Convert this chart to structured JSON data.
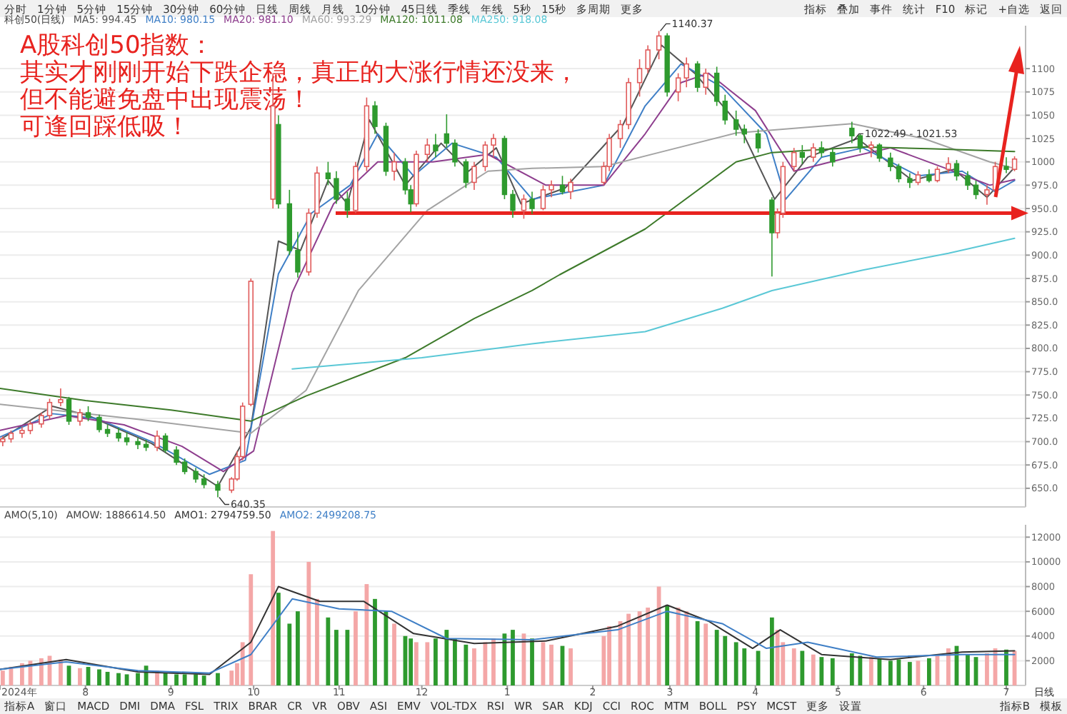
{
  "chart_data": [
    {
      "type": "other",
      "annotations": [
        "分时",
        "1分钟",
        "5分钟",
        "15分钟",
        "30分钟",
        "60分钟",
        "日线",
        "周线",
        "月线",
        "10分钟",
        "45日线",
        "季线",
        "年线",
        "5秒",
        "15秒",
        "多周期",
        "更多"
      ]
    },
    {
      "type": "other",
      "annotations": [
        "指标",
        "叠加",
        "事件",
        "统计",
        "F10",
        "标记",
        "+自选",
        "返回"
      ]
    },
    {
      "type": "candlestick",
      "subtitle": "科创50(日线)",
      "legend": "top left",
      "grid": "y",
      "tick_labels": "y",
      "xlim": [
        "2024-07-01",
        "2025-07-08"
      ],
      "ylim": [
        630,
        1146
      ],
      "yticks": [
        {
          "value": 650,
          "label": "650.0"
        },
        {
          "value": 675,
          "label": "675.0"
        },
        {
          "value": 700,
          "label": "700.0"
        },
        {
          "value": 725,
          "label": "725.0"
        },
        {
          "value": 750,
          "label": "750.0"
        },
        {
          "value": 775,
          "label": "775.0"
        },
        {
          "value": 800,
          "label": "800.0"
        },
        {
          "value": 825,
          "label": "825.0"
        },
        {
          "value": 850,
          "label": "850.0"
        },
        {
          "value": 875,
          "label": "875.0"
        },
        {
          "value": 900,
          "label": "900.0"
        },
        {
          "value": 925,
          "label": "925.0"
        },
        {
          "value": 950,
          "label": "950.0"
        },
        {
          "value": 975,
          "label": "975.0"
        },
        1000,
        1025,
        1050,
        1075,
        1100
      ],
      "x": [
        "2024-07-02",
        "2024-07-05",
        "2024-07-09",
        "2024-07-12",
        "2024-07-16",
        "2024-07-19",
        "2024-07-23",
        "2024-07-26",
        "2024-07-30",
        "2024-08-02",
        "2024-08-06",
        "2024-08-09",
        "2024-08-13",
        "2024-08-16",
        "2024-08-20",
        "2024-08-23",
        "2024-08-27",
        "2024-08-30",
        "2024-09-03",
        "2024-09-06",
        "2024-09-10",
        "2024-09-13",
        "2024-09-18",
        "2024-09-23",
        "2024-09-25",
        "2024-09-27",
        "2024-09-30",
        "2024-10-08",
        "2024-10-10",
        "2024-10-14",
        "2024-10-17",
        "2024-10-21",
        "2024-10-24",
        "2024-10-28",
        "2024-10-31",
        "2024-11-04",
        "2024-11-07",
        "2024-11-11",
        "2024-11-14",
        "2024-11-18",
        "2024-11-21",
        "2024-11-25",
        "2024-11-27",
        "2024-11-29",
        "2024-12-03",
        "2024-12-06",
        "2024-12-10",
        "2024-12-13",
        "2024-12-17",
        "2024-12-20",
        "2024-12-24",
        "2024-12-27",
        "2024-12-31",
        "2025-01-03",
        "2025-01-07",
        "2025-01-10",
        "2025-01-14",
        "2025-01-17",
        "2025-01-21",
        "2025-01-24",
        "2025-02-05",
        "2025-02-07",
        "2025-02-11",
        "2025-02-14",
        "2025-02-18",
        "2025-02-21",
        "2025-02-25",
        "2025-02-28",
        "2025-03-04",
        "2025-03-07",
        "2025-03-11",
        "2025-03-14",
        "2025-03-18",
        "2025-03-21",
        "2025-03-25",
        "2025-03-28",
        "2025-04-02",
        "2025-04-07",
        "2025-04-09",
        "2025-04-11",
        "2025-04-15",
        "2025-04-18",
        "2025-04-22",
        "2025-04-25",
        "2025-04-29",
        "2025-05-06",
        "2025-05-09",
        "2025-05-13",
        "2025-05-16",
        "2025-05-20",
        "2025-05-23",
        "2025-05-27",
        "2025-05-30",
        "2025-06-03",
        "2025-06-06",
        "2025-06-10",
        "2025-06-13",
        "2025-06-17",
        "2025-06-20",
        "2025-06-24",
        "2025-06-27",
        "2025-07-01",
        "2025-07-04"
      ],
      "ohlc": [
        [
          700,
          706,
          695,
          703
        ],
        [
          703,
          712,
          699,
          709
        ],
        [
          709,
          716,
          704,
          712
        ],
        [
          712,
          722,
          708,
          719
        ],
        [
          719,
          731,
          715,
          728
        ],
        [
          728,
          746,
          724,
          742
        ],
        [
          742,
          757,
          738,
          745
        ],
        [
          745,
          748,
          718,
          722
        ],
        [
          722,
          735,
          717,
          731
        ],
        [
          731,
          738,
          722,
          726
        ],
        [
          726,
          729,
          710,
          713
        ],
        [
          713,
          718,
          705,
          709
        ],
        [
          709,
          715,
          700,
          704
        ],
        [
          704,
          710,
          696,
          700
        ],
        [
          700,
          704,
          692,
          697
        ],
        [
          697,
          702,
          690,
          694
        ],
        [
          694,
          712,
          690,
          706
        ],
        [
          706,
          709,
          688,
          691
        ],
        [
          691,
          695,
          675,
          678
        ],
        [
          678,
          682,
          665,
          668
        ],
        [
          668,
          672,
          656,
          660
        ],
        [
          660,
          665,
          650,
          654
        ],
        [
          654,
          658,
          640.35,
          648
        ],
        [
          648,
          662,
          645,
          660
        ],
        [
          660,
          690,
          658,
          684
        ],
        [
          684,
          742,
          680,
          738
        ],
        [
          740,
          875,
          738,
          872
        ],
        [
          960,
          1095,
          950,
          1060
        ],
        [
          1040,
          1050,
          950,
          955
        ],
        [
          955,
          970,
          900,
          905
        ],
        [
          905,
          925,
          876,
          882
        ],
        [
          882,
          950,
          878,
          945
        ],
        [
          945,
          995,
          940,
          988
        ],
        [
          988,
          1000,
          975,
          982
        ],
        [
          982,
          990,
          955,
          960
        ],
        [
          960,
          968,
          940,
          948
        ],
        [
          948,
          1000,
          945,
          995
        ],
        [
          995,
          1069,
          990,
          1060
        ],
        [
          1060,
          1065,
          1030,
          1038
        ],
        [
          1038,
          1042,
          985,
          990
        ],
        [
          990,
          1010,
          980,
          1000
        ],
        [
          1000,
          1004,
          965,
          970
        ],
        [
          970,
          975,
          946,
          955
        ],
        [
          955,
          1012,
          952,
          1008
        ],
        [
          1008,
          1025,
          1000,
          1018
        ],
        [
          1018,
          1030,
          1005,
          1012
        ],
        [
          1030,
          1051,
          1015,
          1020
        ],
        [
          1020,
          1024,
          995,
          1000
        ],
        [
          1000,
          1003,
          972,
          978
        ],
        [
          978,
          1000,
          970,
          995
        ],
        [
          995,
          1022,
          990,
          1018
        ],
        [
          1018,
          1030,
          1005,
          1025
        ],
        [
          1025,
          1028,
          960,
          965
        ],
        [
          965,
          970,
          940,
          948
        ],
        [
          948,
          965,
          939,
          960
        ],
        [
          960,
          968,
          944,
          950
        ],
        [
          950,
          975,
          948,
          970
        ],
        [
          970,
          980,
          962,
          975
        ],
        [
          975,
          985,
          965,
          968
        ],
        [
          968,
          982,
          960,
          978
        ],
        [
          978,
          1000,
          975,
          995
        ],
        [
          995,
          1030,
          990,
          1025
        ],
        [
          1025,
          1045,
          1015,
          1040
        ],
        [
          1040,
          1090,
          1035,
          1085
        ],
        [
          1085,
          1110,
          1070,
          1100
        ],
        [
          1100,
          1125,
          1095,
          1120
        ],
        [
          1120,
          1140.37,
          1110,
          1135
        ],
        [
          1135,
          1138,
          1070,
          1075
        ],
        [
          1075,
          1095,
          1065,
          1090
        ],
        [
          1090,
          1112,
          1080,
          1105
        ],
        [
          1105,
          1108,
          1075,
          1080
        ],
        [
          1080,
          1100,
          1072,
          1095
        ],
        [
          1095,
          1102,
          1060,
          1065
        ],
        [
          1065,
          1072,
          1040,
          1045
        ],
        [
          1045,
          1055,
          1028,
          1035
        ],
        [
          1035,
          1040,
          1020,
          1030
        ],
        [
          1030,
          1035,
          1010,
          1015
        ],
        [
          959,
          962,
          877,
          924
        ],
        [
          924,
          950,
          918,
          945
        ],
        [
          945,
          1000,
          940,
          995
        ],
        [
          995,
          1015,
          990,
          1010
        ],
        [
          1010,
          1018,
          998,
          1005
        ],
        [
          1005,
          1020,
          1000,
          1015
        ],
        [
          1015,
          1022,
          1005,
          1010
        ],
        [
          1010,
          1015,
          995,
          1000
        ],
        [
          1036,
          1043,
          1020,
          1028
        ],
        [
          1028,
          1030,
          1010,
          1015
        ],
        [
          1015,
          1022,
          1005,
          1018
        ],
        [
          1018,
          1020,
          1000,
          1004
        ],
        [
          1004,
          1010,
          990,
          995
        ],
        [
          995,
          998,
          978,
          982
        ],
        [
          982,
          988,
          972,
          978
        ],
        [
          978,
          990,
          975,
          986
        ],
        [
          986,
          992,
          978,
          980
        ],
        [
          980,
          995,
          978,
          992
        ],
        [
          992,
          1005,
          988,
          998
        ],
        [
          998,
          1002,
          980,
          985
        ],
        [
          985,
          990,
          970,
          975
        ],
        [
          975,
          980,
          960,
          965
        ],
        [
          965,
          975,
          954,
          970
        ],
        [
          970,
          1000,
          968,
          995
        ],
        [
          995,
          1005,
          988,
          992
        ],
        [
          992,
          1006,
          990,
          1003
        ]
      ],
      "series": [
        {
          "type": "line",
          "name": "MA5: 994.45",
          "color": "#555555",
          "x": [
            "2024-07-01",
            "2024-07-20",
            "2024-08-02",
            "2024-08-25",
            "2024-09-18",
            "2024-09-30",
            "2024-10-10",
            "2024-10-18",
            "2024-10-28",
            "2024-11-04",
            "2024-11-12",
            "2024-11-25",
            "2024-12-08",
            "2024-12-18",
            "2024-12-28",
            "2025-01-06",
            "2025-01-22",
            "2025-02-12",
            "2025-02-26",
            "2025-03-10",
            "2025-03-26",
            "2025-04-08",
            "2025-04-20",
            "2025-05-08",
            "2025-05-28",
            "2025-06-12",
            "2025-06-24",
            "2025-07-04"
          ],
          "values": [
            702,
            738,
            728,
            698,
            652,
            715,
            915,
            905,
            980,
            955,
            1045,
            975,
            1020,
            990,
            1015,
            955,
            972,
            1040,
            1125,
            1095,
            1040,
            960,
            1005,
            1025,
            980,
            992,
            962,
            994
          ]
        },
        {
          "type": "line",
          "name": "MA10: 980.15",
          "color": "#3f7fc6",
          "x": [
            "2024-07-01",
            "2024-07-20",
            "2024-08-05",
            "2024-08-25",
            "2024-09-15",
            "2024-09-28",
            "2024-10-10",
            "2024-10-22",
            "2024-11-05",
            "2024-11-15",
            "2024-11-28",
            "2024-12-12",
            "2024-12-28",
            "2025-01-10",
            "2025-02-05",
            "2025-02-20",
            "2025-03-05",
            "2025-03-20",
            "2025-04-05",
            "2025-04-12",
            "2025-04-25",
            "2025-05-10",
            "2025-05-30",
            "2025-06-15",
            "2025-06-27",
            "2025-07-04"
          ],
          "values": [
            705,
            730,
            725,
            700,
            665,
            680,
            880,
            945,
            975,
            1030,
            985,
            1020,
            1005,
            960,
            975,
            1060,
            1105,
            1080,
            1030,
            960,
            1005,
            1015,
            985,
            990,
            968,
            980
          ]
        },
        {
          "type": "line",
          "name": "MA20: 981.10",
          "color": "#8e3e8e",
          "x": [
            "2024-07-01",
            "2024-07-25",
            "2024-08-15",
            "2024-09-05",
            "2024-09-20",
            "2024-10-01",
            "2024-10-15",
            "2024-10-30",
            "2024-11-15",
            "2024-12-05",
            "2024-12-25",
            "2025-01-15",
            "2025-02-05",
            "2025-02-20",
            "2025-03-05",
            "2025-03-15",
            "2025-04-01",
            "2025-04-15",
            "2025-05-05",
            "2025-05-20",
            "2025-06-10",
            "2025-06-25",
            "2025-07-04"
          ],
          "values": [
            712,
            728,
            718,
            695,
            668,
            690,
            860,
            955,
            1000,
            1000,
            1008,
            975,
            975,
            1030,
            1085,
            1095,
            1055,
            990,
            1005,
            1015,
            992,
            975,
            981
          ]
        },
        {
          "type": "line",
          "name": "MA60: 993.29",
          "color": "#a3a3a3",
          "x": [
            "2024-07-01",
            "2024-08-20",
            "2024-09-30",
            "2024-10-20",
            "2024-11-08",
            "2024-12-03",
            "2024-12-25",
            "2025-01-10",
            "2025-02-05",
            "2025-02-25",
            "2025-03-25",
            "2025-05-06",
            "2025-06-01",
            "2025-06-25",
            "2025-07-04"
          ],
          "values": [
            740,
            724,
            709,
            755,
            862,
            948,
            990,
            993,
            995,
            1010,
            1031,
            1041,
            1025,
            1000,
            993
          ]
        },
        {
          "type": "line",
          "name": "MA120: 1011.08",
          "color": "#3d7a2a",
          "x": [
            "2024-07-01",
            "2024-08-01",
            "2024-09-01",
            "2024-09-30",
            "2024-10-20",
            "2024-11-25",
            "2024-12-20",
            "2025-01-10",
            "2025-01-20",
            "2025-02-20",
            "2025-03-25",
            "2025-04-07",
            "2025-05-10",
            "2025-06-05",
            "2025-07-04"
          ],
          "values": [
            757,
            744,
            734,
            722,
            749,
            790,
            832,
            862,
            879,
            928,
            1000,
            1010,
            1016,
            1014,
            1011
          ]
        },
        {
          "type": "line",
          "name": "MA250: 918.08",
          "color": "#5bc8d6",
          "x": [
            "2024-10-15",
            "2024-12-01",
            "2025-01-10",
            "2025-02-20",
            "2025-03-20",
            "2025-04-07",
            "2025-05-10",
            "2025-06-10",
            "2025-07-04"
          ],
          "values": [
            778,
            790,
            805,
            818,
            843,
            862,
            884,
            902,
            918
          ]
        }
      ],
      "ref_lines": [
        {
          "axis": "y",
          "value": 945,
          "color": "#e8231f"
        }
      ],
      "annotations": [
        "A股科创50指数：",
        "其实才刚刚开始下跌企稳，真正的大涨行情还没来，",
        "但不能避免盘中出现震荡！",
        "可逢回踩低吸！",
        {
          "text": "1140.37",
          "x": "2025-02-25",
          "y": 1140.37
        },
        {
          "text": "640.35",
          "x": "2024-09-18",
          "y": 640.35
        },
        {
          "text": "1022.49 - 1021.53",
          "x": "2025-05-06",
          "y": 1022.49
        }
      ]
    },
    {
      "type": "bar",
      "subtitle": "AMO(5,10)",
      "legend": "top left",
      "grid": "y",
      "annotations": [
        "AMOW: 1886614.50",
        "日线"
      ],
      "xlim": [
        "2024-07-01",
        "2025-07-08"
      ],
      "xticks": [
        {
          "value": "2024-07-01",
          "label": "2024年"
        },
        {
          "value": "2024-08-01",
          "label": "8"
        },
        {
          "value": "2024-09-01",
          "label": "9"
        },
        {
          "value": "2024-10-01",
          "label": "10"
        },
        {
          "value": "2024-11-01",
          "label": "11"
        },
        {
          "value": "2024-12-01",
          "label": "12"
        },
        {
          "value": "2025-01-01",
          "label": "1"
        },
        {
          "value": "2025-02-01",
          "label": "2"
        },
        {
          "value": "2025-03-01",
          "label": "3"
        },
        {
          "value": "2025-04-01",
          "label": "4"
        },
        {
          "value": "2025-05-01",
          "label": "5"
        },
        {
          "value": "2025-06-01",
          "label": "6"
        },
        {
          "value": "2025-07-01",
          "label": "7"
        }
      ],
      "ylim": [
        0,
        13000
      ],
      "yticks": [
        2000,
        4000,
        6000,
        8000,
        10000,
        12000
      ],
      "x": [
        "2024-07-02",
        "2024-07-05",
        "2024-07-09",
        "2024-07-12",
        "2024-07-16",
        "2024-07-19",
        "2024-07-23",
        "2024-07-26",
        "2024-07-30",
        "2024-08-02",
        "2024-08-06",
        "2024-08-09",
        "2024-08-13",
        "2024-08-16",
        "2024-08-20",
        "2024-08-23",
        "2024-08-27",
        "2024-08-30",
        "2024-09-03",
        "2024-09-06",
        "2024-09-10",
        "2024-09-13",
        "2024-09-18",
        "2024-09-23",
        "2024-09-25",
        "2024-09-27",
        "2024-09-30",
        "2024-10-08",
        "2024-10-10",
        "2024-10-14",
        "2024-10-17",
        "2024-10-21",
        "2024-10-24",
        "2024-10-28",
        "2024-10-31",
        "2024-11-04",
        "2024-11-07",
        "2024-11-11",
        "2024-11-14",
        "2024-11-18",
        "2024-11-21",
        "2024-11-25",
        "2024-11-27",
        "2024-11-29",
        "2024-12-03",
        "2024-12-06",
        "2024-12-10",
        "2024-12-13",
        "2024-12-17",
        "2024-12-20",
        "2024-12-24",
        "2024-12-27",
        "2024-12-31",
        "2025-01-03",
        "2025-01-07",
        "2025-01-10",
        "2025-01-14",
        "2025-01-17",
        "2025-01-21",
        "2025-01-24",
        "2025-02-05",
        "2025-02-07",
        "2025-02-11",
        "2025-02-14",
        "2025-02-18",
        "2025-02-21",
        "2025-02-25",
        "2025-02-28",
        "2025-03-04",
        "2025-03-07",
        "2025-03-11",
        "2025-03-14",
        "2025-03-18",
        "2025-03-21",
        "2025-03-25",
        "2025-03-28",
        "2025-04-02",
        "2025-04-07",
        "2025-04-09",
        "2025-04-11",
        "2025-04-15",
        "2025-04-18",
        "2025-04-22",
        "2025-04-25",
        "2025-04-29",
        "2025-05-06",
        "2025-05-09",
        "2025-05-13",
        "2025-05-16",
        "2025-05-20",
        "2025-05-23",
        "2025-05-27",
        "2025-05-30",
        "2025-06-03",
        "2025-06-06",
        "2025-06-10",
        "2025-06-13",
        "2025-06-17",
        "2025-06-20",
        "2025-06-24",
        "2025-06-27",
        "2025-07-01",
        "2025-07-04"
      ],
      "series": [
        {
          "type": "bar",
          "values": [
            1200,
            1500,
            1800,
            2000,
            2200,
            2400,
            2100,
            1600,
            1400,
            1500,
            1300,
            1100,
            1000,
            900,
            1000,
            1600,
            1200,
            1000,
            900,
            900,
            900,
            800,
            1000,
            1200,
            1800,
            3500,
            9000,
            12500,
            7500,
            5000,
            6000,
            10000,
            7000,
            5500,
            4500,
            4500,
            6000,
            8200,
            7000,
            6000,
            5000,
            4000,
            3800,
            3500,
            3500,
            3800,
            4500,
            3800,
            3300,
            3000,
            3500,
            3800,
            4200,
            4500,
            4200,
            3800,
            3500,
            3300,
            3200,
            3000,
            4000,
            4800,
            5200,
            5800,
            6000,
            6300,
            8000,
            6500,
            6300,
            6000,
            5200,
            5000,
            4500,
            4000,
            3500,
            3000,
            2800,
            5500,
            4500,
            3500,
            3000,
            2800,
            2500,
            2300,
            2200,
            2600,
            2400,
            2300,
            2200,
            2000,
            2100,
            1900,
            2000,
            2200,
            2400,
            3000,
            3200,
            2500,
            2300,
            2600,
            3000,
            2900,
            2800
          ],
          "colors": [
            "#f4a7a7",
            "#f4a7a7",
            "#f4a7a7",
            "#f4a7a7",
            "#f4a7a7",
            "#f4a7a7",
            "#f4a7a7",
            "#2e9a2e",
            "#f4a7a7",
            "#2e9a2e",
            "#2e9a2e",
            "#2e9a2e",
            "#2e9a2e",
            "#2e9a2e",
            "#2e9a2e",
            "#2e9a2e",
            "#f4a7a7",
            "#2e9a2e",
            "#2e9a2e",
            "#2e9a2e",
            "#2e9a2e",
            "#2e9a2e",
            "#2e9a2e",
            "#f4a7a7",
            "#f4a7a7",
            "#f4a7a7",
            "#f4a7a7",
            "#f4a7a7",
            "#2e9a2e",
            "#2e9a2e",
            "#2e9a2e",
            "#f4a7a7",
            "#f4a7a7",
            "#2e9a2e",
            "#2e9a2e",
            "#2e9a2e",
            "#f4a7a7",
            "#f4a7a7",
            "#2e9a2e",
            "#2e9a2e",
            "#f4a7a7",
            "#2e9a2e",
            "#2e9a2e",
            "#f4a7a7",
            "#f4a7a7",
            "#2e9a2e",
            "#2e9a2e",
            "#2e9a2e",
            "#2e9a2e",
            "#f4a7a7",
            "#f4a7a7",
            "#f4a7a7",
            "#2e9a2e",
            "#2e9a2e",
            "#f4a7a7",
            "#2e9a2e",
            "#f4a7a7",
            "#f4a7a7",
            "#2e9a2e",
            "#f4a7a7",
            "#f4a7a7",
            "#f4a7a7",
            "#f4a7a7",
            "#f4a7a7",
            "#f4a7a7",
            "#f4a7a7",
            "#f4a7a7",
            "#2e9a2e",
            "#f4a7a7",
            "#f4a7a7",
            "#2e9a2e",
            "#f4a7a7",
            "#2e9a2e",
            "#2e9a2e",
            "#2e9a2e",
            "#2e9a2e",
            "#2e9a2e",
            "#2e9a2e",
            "#f4a7a7",
            "#f4a7a7",
            "#f4a7a7",
            "#2e9a2e",
            "#f4a7a7",
            "#2e9a2e",
            "#2e9a2e",
            "#2e9a2e",
            "#2e9a2e",
            "#f4a7a7",
            "#2e9a2e",
            "#2e9a2e",
            "#2e9a2e",
            "#2e9a2e",
            "#f4a7a7",
            "#2e9a2e",
            "#f4a7a7",
            "#f4a7a7",
            "#2e9a2e",
            "#2e9a2e",
            "#2e9a2e",
            "#f4a7a7",
            "#f4a7a7",
            "#2e9a2e",
            "#f4a7a7"
          ]
        },
        {
          "type": "line",
          "name": "AMO1: 2794759.50",
          "color": "#333333",
          "x": [
            "2024-07-01",
            "2024-07-25",
            "2024-08-20",
            "2024-09-15",
            "2024-09-30",
            "2024-10-10",
            "2024-10-25",
            "2024-11-10",
            "2024-11-28",
            "2024-12-20",
            "2025-01-15",
            "2025-02-10",
            "2025-02-28",
            "2025-03-15",
            "2025-03-31",
            "2025-04-10",
            "2025-04-25",
            "2025-05-20",
            "2025-06-15",
            "2025-07-04"
          ],
          "values": [
            1300,
            2100,
            1100,
            900,
            3500,
            8000,
            6800,
            6800,
            4200,
            3400,
            3600,
            4800,
            6500,
            5200,
            3000,
            4500,
            2500,
            2100,
            2700,
            2800
          ]
        },
        {
          "type": "line",
          "name": "AMO2: 2499208.75",
          "color": "#3f7fc6",
          "x": [
            "2024-07-01",
            "2024-07-25",
            "2024-08-20",
            "2024-09-15",
            "2024-09-30",
            "2024-10-15",
            "2024-11-01",
            "2024-11-20",
            "2024-12-10",
            "2025-01-10",
            "2025-02-10",
            "2025-02-28",
            "2025-03-20",
            "2025-04-05",
            "2025-04-20",
            "2025-05-15",
            "2025-06-15",
            "2025-07-04"
          ],
          "values": [
            1300,
            1900,
            1200,
            1000,
            2500,
            7000,
            6200,
            6000,
            3800,
            3700,
            4500,
            6000,
            5000,
            3000,
            3500,
            2300,
            2500,
            2500
          ]
        }
      ]
    },
    {
      "type": "other",
      "annotations": [
        "指标A",
        "窗口",
        "MACD",
        "DMI",
        "DMA",
        "FSL",
        "TRIX",
        "BRAR",
        "CR",
        "VR",
        "OBV",
        "ASI",
        "EMV",
        "VOL-TDX",
        "RSI",
        "WR",
        "SAR",
        "KDJ",
        "CCI",
        "ROC",
        "MTM",
        "BOLL",
        "PSY",
        "MCST",
        "更多",
        "设置"
      ]
    },
    {
      "type": "other",
      "annotations": [
        "指标B",
        "模板"
      ]
    }
  ]
}
